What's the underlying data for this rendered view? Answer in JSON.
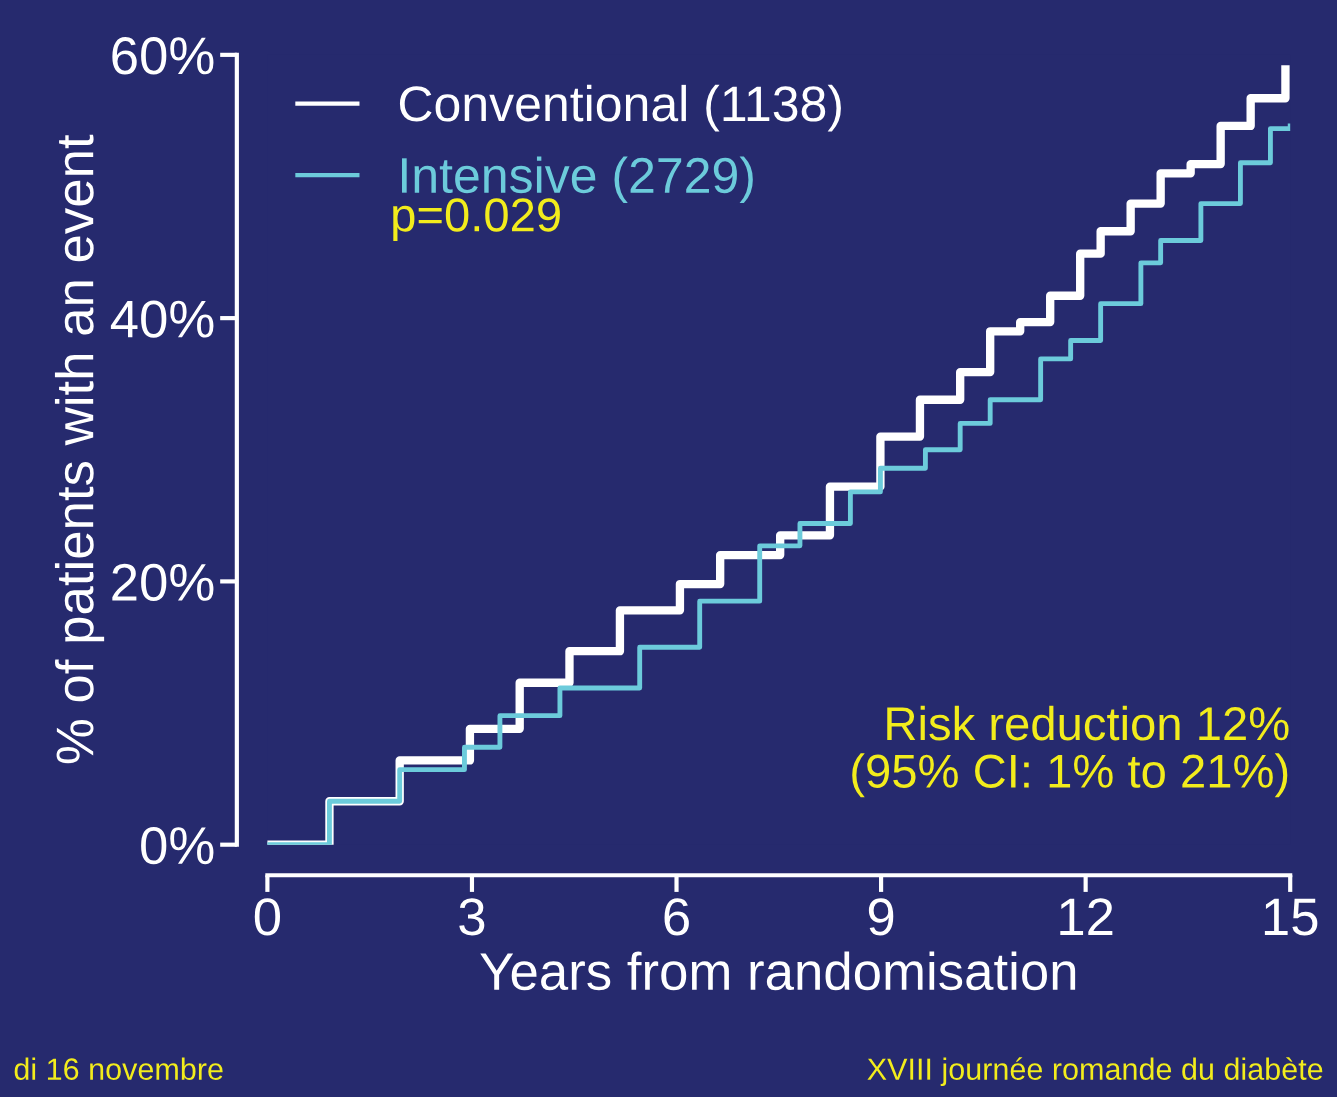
{
  "chart_data": {
    "type": "step",
    "xlabel": "Years from randomisation",
    "ylabel": "% of patients with an event",
    "series": [
      {
        "name": "Conventional (1138)",
        "color": "#ffffff",
        "x": [
          0,
          0.91,
          1.94,
          2.97,
          3.7,
          4.43,
          5.17,
          6.05,
          6.64,
          7.52,
          8.25,
          8.99,
          9.57,
          10.16,
          10.6,
          11.04,
          11.48,
          11.92,
          12.22,
          12.66,
          13.1,
          13.54,
          13.98,
          14.42,
          14.93
        ],
        "values": [
          0,
          3.3,
          6.4,
          8.8,
          12.3,
          14.7,
          17.8,
          19.8,
          22.0,
          23.5,
          27.2,
          31.0,
          33.8,
          35.9,
          39.0,
          39.7,
          41.7,
          44.9,
          46.6,
          48.7,
          51.0,
          51.7,
          54.6,
          56.7,
          58.9
        ]
      },
      {
        "name": "Intensive (2729)",
        "color": "#6ccbdb",
        "x": [
          0,
          0.91,
          1.94,
          2.89,
          3.41,
          4.29,
          5.46,
          6.34,
          7.22,
          7.81,
          8.55,
          8.99,
          9.65,
          10.16,
          10.6,
          11.34,
          11.78,
          12.22,
          12.81,
          13.1,
          13.69,
          14.27,
          14.71,
          15.0
        ],
        "values": [
          0,
          3.3,
          5.7,
          7.4,
          9.8,
          11.9,
          15.0,
          18.5,
          22.7,
          24.4,
          26.8,
          28.6,
          30.0,
          32.0,
          33.8,
          36.9,
          38.3,
          41.1,
          44.2,
          45.9,
          48.7,
          51.8,
          54.4,
          54.6
        ]
      }
    ],
    "xlim": [
      0,
      15
    ],
    "xticks": [
      0,
      3,
      6,
      9,
      12,
      15
    ],
    "ylim": [
      0,
      60
    ],
    "yticks": [
      {
        "value": 0,
        "label": "0%"
      },
      {
        "value": 20,
        "label": "20%"
      },
      {
        "value": 40,
        "label": "40%"
      },
      {
        "value": 60,
        "label": "60%"
      }
    ],
    "grid": false,
    "legend": "top left",
    "line_style": "solid",
    "marker": "none",
    "annotations": [
      "p=0.029",
      "Risk reduction 12%\n(95% CI: 1% to 21%)",
      "di 16 novembre",
      "XVIII journée romande du diabète"
    ]
  }
}
